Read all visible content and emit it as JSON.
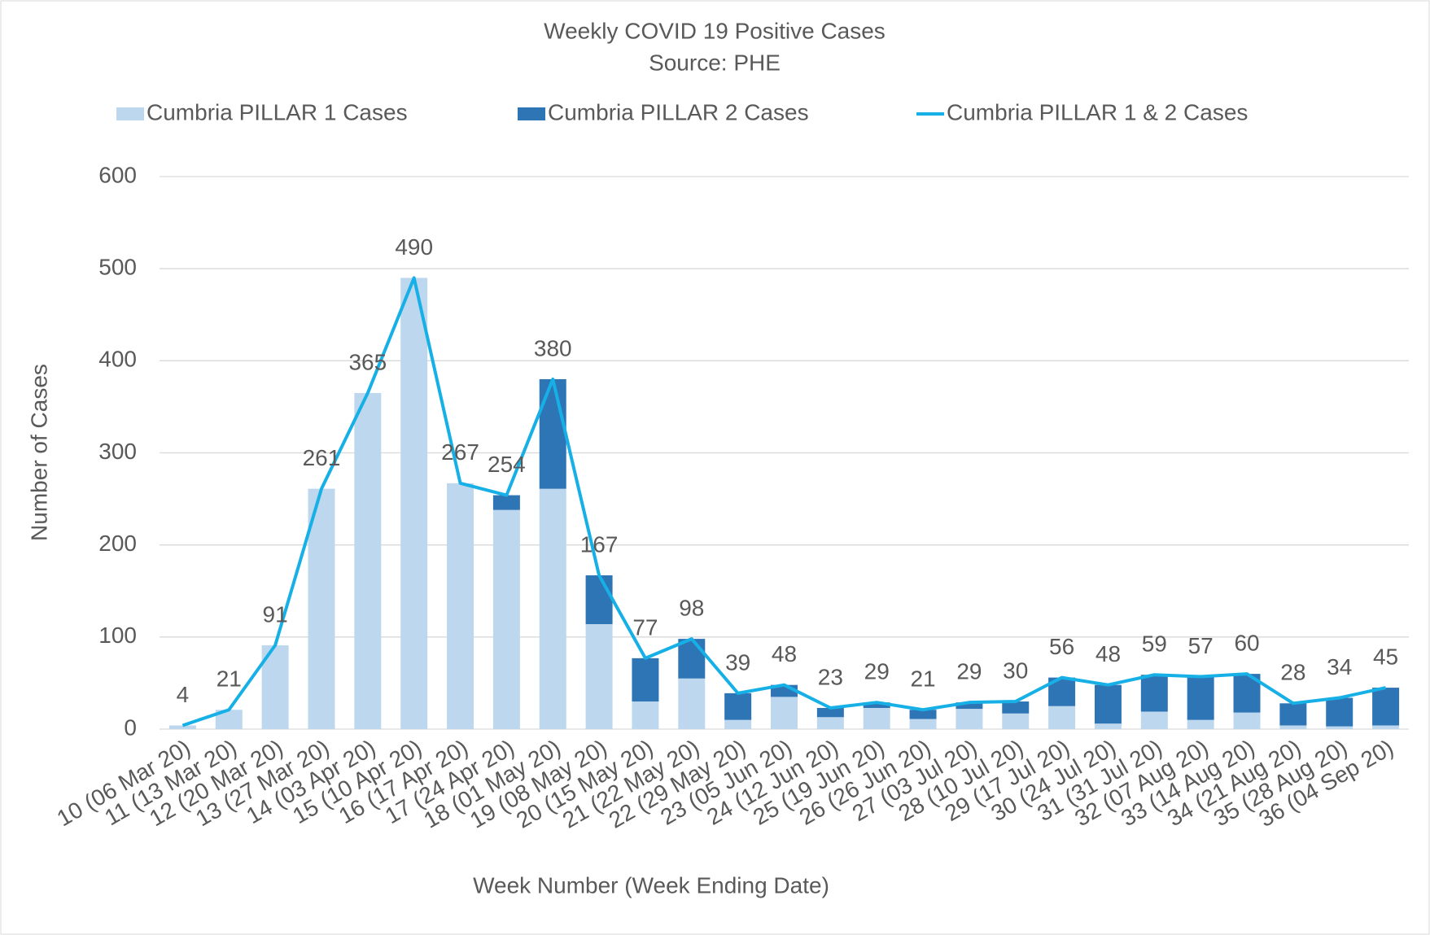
{
  "chart_data": {
    "type": "bar",
    "stacked": true,
    "title": "Weekly COVID 19 Positive Cases",
    "subtitle": "Source: PHE",
    "x_label": "Week Number (Week Ending Date)",
    "y_label": "Number of Cases",
    "categories": [
      "10 (06 Mar 20)",
      "11 (13 Mar 20)",
      "12 (20 Mar 20)",
      "13 (27 Mar 20)",
      "14 (03 Apr 20)",
      "15 (10 Apr 20)",
      "16 (17 Apr 20)",
      "17 (24 Apr 20)",
      "18 (01 May 20)",
      "19 (08 May 20)",
      "20 (15 May 20)",
      "21 (22 May 20)",
      "22 (29 May 20)",
      "23 (05 Jun 20)",
      "24 (12 Jun 20)",
      "25 (19 Jun 20)",
      "26 (26 Jun 20)",
      "27 (03 Jul 20)",
      "28 (10 Jul 20)",
      "29 (17 Jul 20)",
      "30 (24 Jul 20)",
      "31 (31 Jul 20)",
      "32 (07 Aug 20)",
      "33 (14 Aug 20)",
      "34 (21 Aug 20)",
      "35 (28 Aug 20)",
      "36 (04 Sep 20)"
    ],
    "series": [
      {
        "name": "Cumbria PILLAR 1 Cases",
        "type": "bar",
        "color": "#bdd7ee",
        "values": [
          4,
          21,
          91,
          261,
          365,
          490,
          267,
          238,
          261,
          114,
          30,
          55,
          10,
          35,
          13,
          23,
          11,
          22,
          17,
          25,
          6,
          19,
          10,
          18,
          4,
          3,
          4
        ]
      },
      {
        "name": "Cumbria PILLAR 2 Cases",
        "type": "bar",
        "color": "#2e75b6",
        "values": [
          0,
          0,
          0,
          0,
          0,
          0,
          0,
          16,
          119,
          53,
          47,
          43,
          29,
          13,
          10,
          6,
          10,
          7,
          13,
          31,
          42,
          40,
          47,
          42,
          24,
          31,
          41
        ]
      },
      {
        "name": "Cumbria PILLAR 1 & 2 Cases",
        "type": "line",
        "color": "#16b0e6",
        "values": [
          4,
          21,
          91,
          261,
          365,
          490,
          267,
          254,
          380,
          167,
          77,
          98,
          39,
          48,
          23,
          29,
          21,
          29,
          30,
          56,
          48,
          59,
          57,
          60,
          28,
          34,
          45
        ]
      }
    ],
    "ylim": [
      0,
      600
    ],
    "yticks": [
      0,
      100,
      200,
      300,
      400,
      500,
      600
    ],
    "grid": true,
    "legend": "top"
  }
}
